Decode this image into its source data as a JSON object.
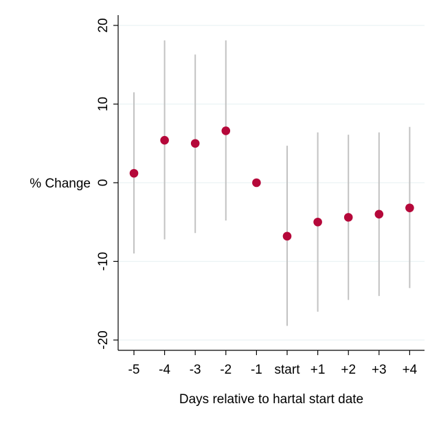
{
  "chart_data": {
    "type": "scatter",
    "title": "",
    "xlabel": "Days relative to hartal start date",
    "ylabel": "% Change",
    "categories": [
      "-5",
      "-4",
      "-3",
      "-2",
      "-1",
      "start",
      "+1",
      "+2",
      "+3",
      "+4"
    ],
    "series": [
      {
        "values": [
          1.2,
          5.4,
          5.0,
          6.6,
          0.0,
          -6.8,
          -5.0,
          -4.4,
          -4.0,
          -3.2
        ],
        "ci_lower": [
          -9.0,
          -7.2,
          -6.4,
          -4.8,
          0.0,
          -18.2,
          -16.4,
          -14.9,
          -14.4,
          -13.4
        ],
        "ci_upper": [
          11.5,
          18.1,
          16.3,
          18.1,
          0.0,
          4.7,
          6.4,
          6.1,
          6.4,
          7.1
        ]
      }
    ],
    "ylim": [
      -20,
      20
    ],
    "yticks": [
      -20,
      -10,
      0,
      10,
      20
    ],
    "grid": true,
    "colors": {
      "point": "#b5083a",
      "ci": "#c2c2c2",
      "grid": "#eaf2f3"
    }
  }
}
